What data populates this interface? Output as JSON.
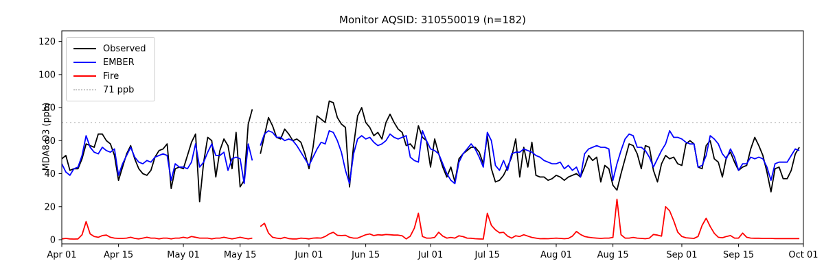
{
  "title": "Monitor AQSID: 310550019 (n=182)",
  "y_axis": {
    "label": "MDA8 O3 (ppb)",
    "ticks": [
      0,
      20,
      40,
      60,
      80,
      100,
      120
    ]
  },
  "x_axis": {
    "ticks": [
      {
        "day": 0,
        "label": "Apr 01"
      },
      {
        "day": 14,
        "label": "Apr 15"
      },
      {
        "day": 30,
        "label": "May 01"
      },
      {
        "day": 44,
        "label": "May 15"
      },
      {
        "day": 61,
        "label": "Jun 01"
      },
      {
        "day": 75,
        "label": "Jun 15"
      },
      {
        "day": 91,
        "label": "Jul 01"
      },
      {
        "day": 105,
        "label": "Jul 15"
      },
      {
        "day": 122,
        "label": "Aug 01"
      },
      {
        "day": 136,
        "label": "Aug 15"
      },
      {
        "day": 153,
        "label": "Sep 01"
      },
      {
        "day": 167,
        "label": "Sep 15"
      },
      {
        "day": 183,
        "label": "Oct 01"
      }
    ]
  },
  "legend": [
    {
      "label": "Observed",
      "color": "#000000",
      "style": "solid"
    },
    {
      "label": "EMBER",
      "color": "#0000ff",
      "style": "solid"
    },
    {
      "label": "Fire",
      "color": "#ff0000",
      "style": "solid"
    },
    {
      "label": "71 ppb",
      "color": "#c8c8c8",
      "style": "dotted"
    }
  ],
  "threshold": {
    "value": 71,
    "label": "71 ppb",
    "color": "#c8c8c8"
  },
  "chart_data": {
    "type": "line",
    "x_unit": "day_index_from_Apr_01",
    "n_days": 183,
    "x_range_labels": [
      "Apr 01",
      "Oct 01"
    ],
    "ylim": [
      -2.5,
      126.5
    ],
    "grid": false,
    "missing_day_index": 48,
    "series": [
      {
        "name": "Observed",
        "color": "#000000",
        "values": [
          49,
          51,
          42,
          43,
          43,
          49,
          58,
          57,
          56,
          64,
          64,
          60,
          58,
          51,
          36,
          44,
          52,
          57,
          49,
          43,
          40,
          39,
          42,
          50,
          54,
          55,
          58,
          31,
          43,
          44,
          43,
          51,
          59,
          64,
          23,
          47,
          62,
          60,
          38,
          54,
          61,
          57,
          43,
          65,
          32,
          36,
          70,
          79,
          null,
          52,
          63,
          74,
          69,
          62,
          61,
          67,
          64,
          60,
          61,
          59,
          52,
          43,
          56,
          75,
          73,
          71,
          84,
          83,
          74,
          70,
          68,
          32,
          57,
          75,
          80,
          71,
          68,
          63,
          65,
          61,
          71,
          76,
          71,
          67,
          65,
          57,
          58,
          55,
          69,
          62,
          60,
          44,
          61,
          52,
          44,
          38,
          44,
          35,
          49,
          52,
          54,
          56,
          56,
          53,
          46,
          63,
          43,
          35,
          36,
          39,
          44,
          50,
          61,
          38,
          56,
          44,
          59,
          39,
          38,
          38,
          36,
          37,
          39,
          38,
          36,
          38,
          39,
          40,
          38,
          44,
          51,
          48,
          50,
          35,
          45,
          43,
          33,
          30,
          40,
          49,
          58,
          57,
          52,
          43,
          57,
          56,
          42,
          35,
          46,
          51,
          49,
          50,
          46,
          45,
          58,
          60,
          58,
          44,
          43,
          57,
          60,
          49,
          47,
          38,
          50,
          53,
          47,
          42,
          44,
          45,
          55,
          62,
          57,
          51,
          41,
          29,
          43,
          44,
          37,
          37,
          42,
          52,
          56
        ]
      },
      {
        "name": "EMBER",
        "color": "#0000ff",
        "values": [
          46,
          41,
          39,
          43,
          44,
          51,
          63,
          56,
          53,
          52,
          56,
          54,
          53,
          55,
          39,
          46,
          51,
          56,
          50,
          47,
          46,
          48,
          47,
          50,
          51,
          52,
          51,
          36,
          46,
          44,
          44,
          43,
          47,
          58,
          44,
          47,
          53,
          58,
          51,
          51,
          53,
          42,
          49,
          50,
          49,
          34,
          58,
          48,
          null,
          57,
          64,
          66,
          65,
          62,
          62,
          60,
          61,
          60,
          57,
          53,
          49,
          45,
          50,
          55,
          59,
          58,
          66,
          65,
          60,
          53,
          42,
          34,
          52,
          61,
          63,
          61,
          62,
          59,
          57,
          58,
          60,
          64,
          62,
          61,
          62,
          63,
          50,
          48,
          47,
          66,
          60,
          55,
          54,
          52,
          46,
          40,
          36,
          34,
          47,
          52,
          55,
          58,
          55,
          50,
          44,
          65,
          60,
          45,
          42,
          48,
          42,
          52,
          53,
          53,
          55,
          54,
          53,
          51,
          50,
          48,
          47,
          46,
          46,
          47,
          43,
          45,
          42,
          44,
          38,
          52,
          55,
          56,
          57,
          56,
          56,
          55,
          36,
          46,
          54,
          61,
          64,
          63,
          56,
          56,
          54,
          50,
          44,
          49,
          54,
          58,
          66,
          62,
          62,
          61,
          59,
          58,
          58,
          44,
          45,
          51,
          63,
          61,
          58,
          52,
          49,
          55,
          50,
          42,
          46,
          46,
          50,
          49,
          50,
          49,
          44,
          36,
          46,
          47,
          47,
          47,
          51,
          55,
          54
        ]
      },
      {
        "name": "Fire",
        "color": "#ff0000",
        "values": [
          0.5,
          0.8,
          0.5,
          0.4,
          0.5,
          3,
          11,
          3.5,
          2,
          1.5,
          2.5,
          2.8,
          1.5,
          1,
          0.8,
          0.8,
          1,
          1.5,
          0.8,
          0.5,
          1,
          1.5,
          1,
          1,
          0.5,
          1,
          1,
          0.5,
          1,
          1,
          1.5,
          1,
          2,
          1.5,
          1,
          1,
          1,
          0.5,
          1,
          1,
          1.5,
          1,
          0.5,
          1,
          1.5,
          1,
          0.5,
          1,
          null,
          8,
          10,
          4,
          1.5,
          1,
          0.7,
          1.4,
          0.7,
          0.5,
          0.5,
          1,
          0.8,
          0.5,
          1,
          1.1,
          1,
          2,
          3.5,
          4.5,
          2.7,
          2.5,
          2.7,
          1.5,
          1,
          1,
          2,
          3,
          3.5,
          2.5,
          3,
          2.8,
          3.2,
          3,
          2.8,
          2.8,
          2.4,
          0.5,
          2.2,
          7,
          16,
          2,
          1,
          1,
          1.4,
          4.5,
          2.2,
          1,
          1.4,
          1,
          2.4,
          1.9,
          1,
          0.9,
          0.6,
          0.5,
          0.4,
          16,
          8.7,
          6,
          4.2,
          4.5,
          2.2,
          1,
          2.4,
          2,
          3,
          2.2,
          1.4,
          1,
          0.6,
          0.7,
          0.6,
          0.8,
          1,
          0.8,
          0.6,
          0.8,
          2.2,
          5,
          3.2,
          2,
          1.5,
          1.2,
          1,
          0.8,
          1,
          1,
          1.4,
          24.5,
          3,
          1,
          1,
          1.4,
          1,
          0.8,
          0.6,
          1,
          3.2,
          2.8,
          2.2,
          20,
          17.5,
          11.5,
          4.6,
          2,
          1.2,
          1,
          0.8,
          2,
          8.7,
          13,
          8,
          3.9,
          1.5,
          1.2,
          2,
          2.5,
          1,
          1,
          4,
          1.5,
          1,
          0.9,
          0.9,
          0.8,
          0.8,
          0.8,
          0.7,
          0.7,
          0.7,
          0.7,
          0.7,
          0.7,
          0.7
        ]
      }
    ]
  }
}
